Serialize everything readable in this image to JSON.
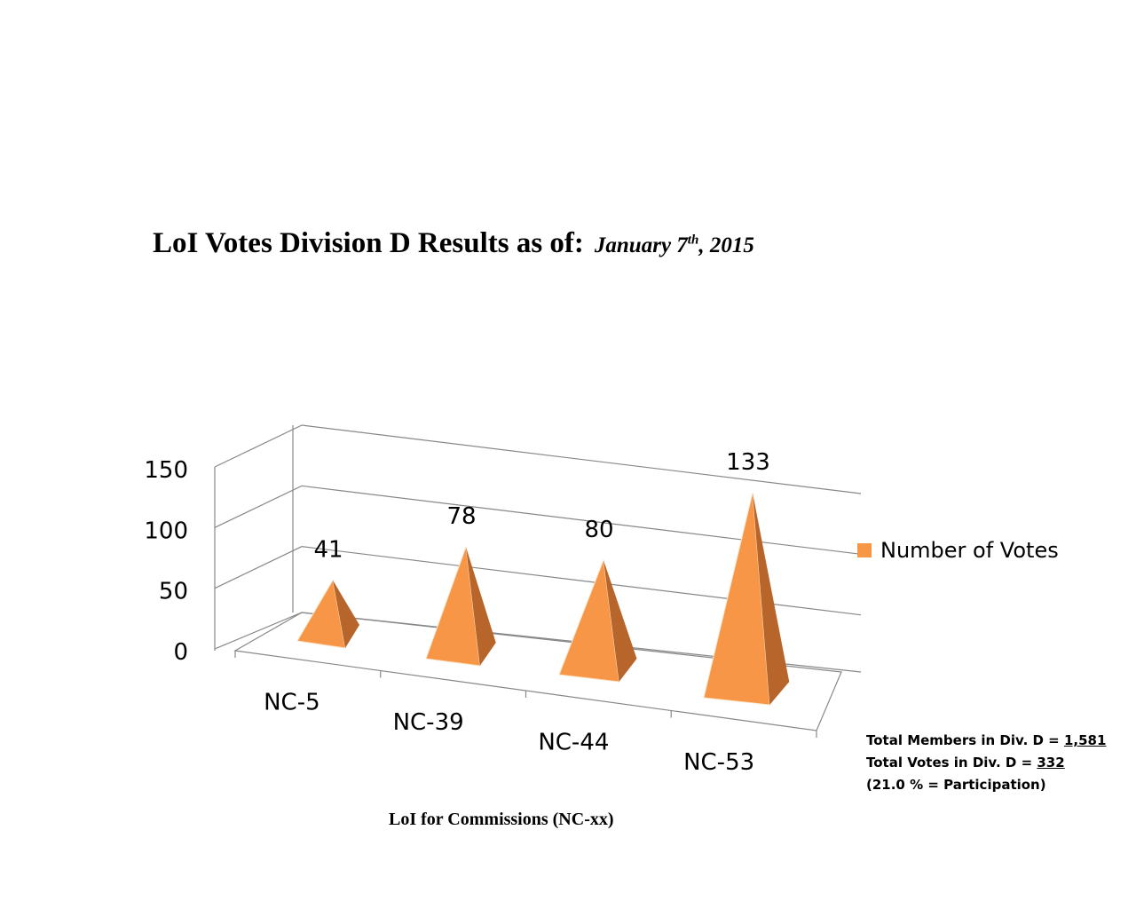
{
  "title": {
    "main": "LoI Votes Division D Results as of:",
    "date_prefix": "January 7",
    "date_sup": "th",
    "date_suffix": ", 2015"
  },
  "stats": {
    "members_label": "Total Members in Div. D = ",
    "members_value": "1,581",
    "votes_label": "Total Votes in Div. D = ",
    "votes_value": "332",
    "participation": "(21.0 % = Participation)"
  },
  "colors": {
    "front": "#F79646",
    "side": "#B7652A",
    "axis": "#888888"
  },
  "chart_data": {
    "type": "bar",
    "style": "3d-pyramid",
    "categories": [
      "NC-5",
      "NC-39",
      "NC-44",
      "NC-53"
    ],
    "series": [
      {
        "name": "Number of Votes",
        "values": [
          41,
          78,
          80,
          133
        ]
      }
    ],
    "xlabel": "LoI for Commissions (NC-xx)",
    "ylabel": "",
    "ylim": [
      0,
      150
    ],
    "yticks": [
      0,
      50,
      100,
      150
    ],
    "grid": true,
    "legend_position": "right"
  }
}
